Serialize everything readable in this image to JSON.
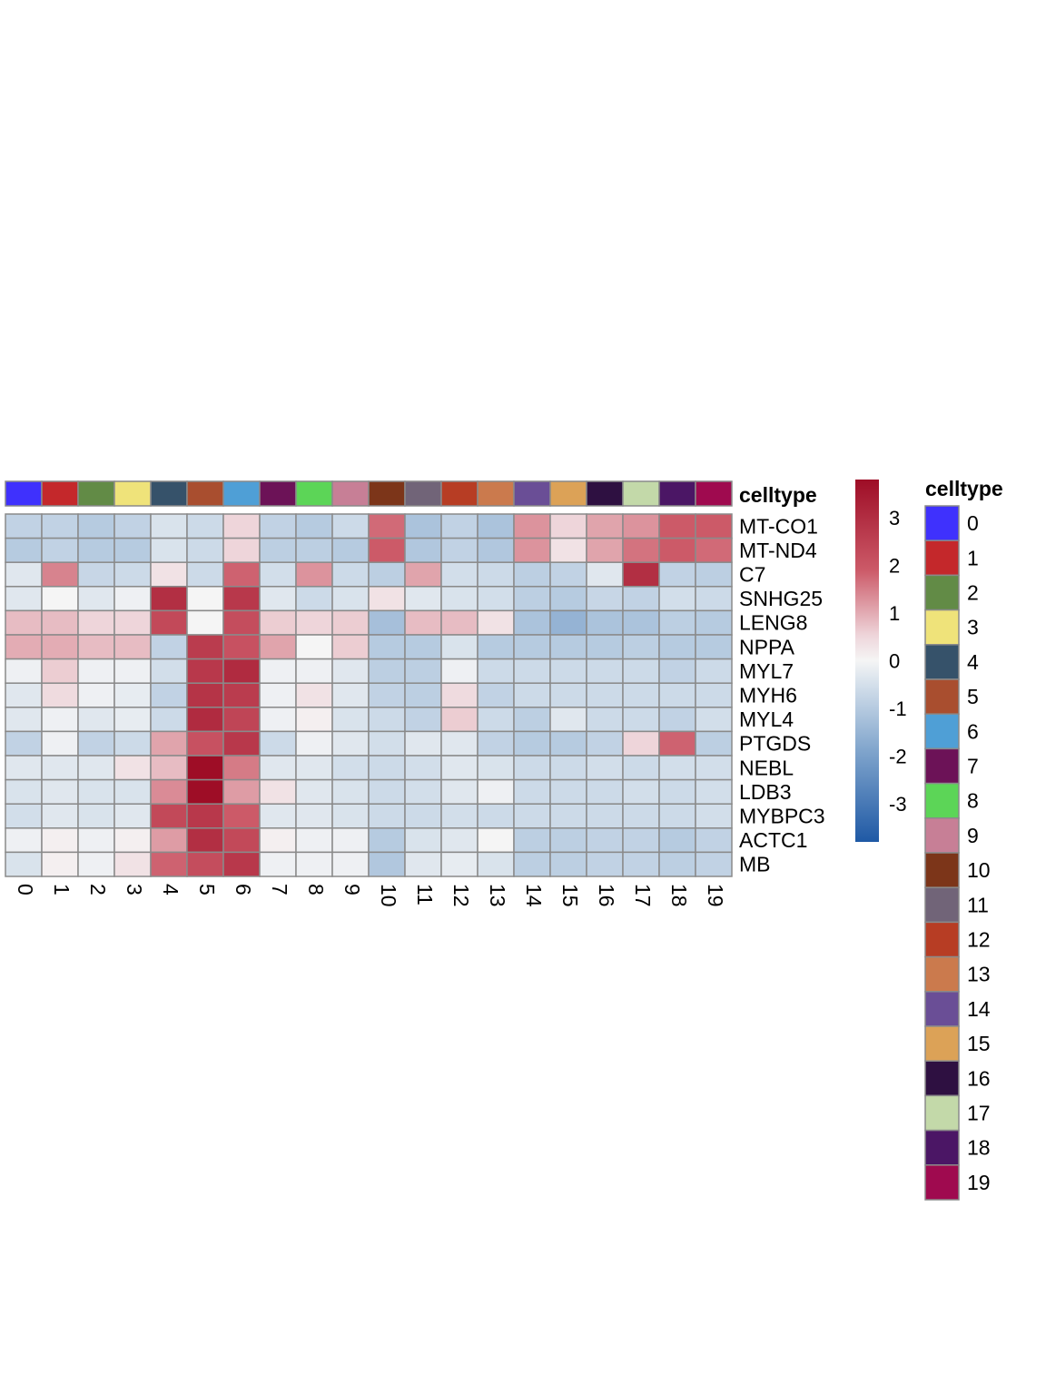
{
  "chart_data": {
    "type": "heatmap",
    "title": "",
    "annotation_title": "celltype",
    "legend_title": "celltype",
    "columns": [
      "0",
      "1",
      "2",
      "3",
      "4",
      "5",
      "6",
      "7",
      "8",
      "9",
      "10",
      "11",
      "12",
      "13",
      "14",
      "15",
      "16",
      "17",
      "18",
      "19"
    ],
    "rows": [
      "MT-CO1",
      "MT-ND4",
      "C7",
      "SNHG25",
      "LENG8",
      "NPPA",
      "MYL7",
      "MYH6",
      "MYL4",
      "PTGDS",
      "NEBL",
      "LDB3",
      "MYBPC3",
      "ACTC1",
      "MB"
    ],
    "values": [
      [
        -0.8,
        -0.8,
        -1.0,
        -0.8,
        -0.4,
        -0.6,
        0.5,
        -0.8,
        -1.0,
        -0.6,
        1.8,
        -1.2,
        -0.8,
        -1.2,
        1.3,
        0.5,
        1.1,
        1.3,
        2.0,
        2.0
      ],
      [
        -1.0,
        -0.8,
        -1.0,
        -1.0,
        -0.4,
        -0.6,
        0.5,
        -0.9,
        -0.9,
        -1.0,
        2.0,
        -1.1,
        -0.8,
        -1.1,
        1.3,
        0.3,
        1.1,
        1.7,
        2.0,
        1.8
      ],
      [
        -0.3,
        1.5,
        -0.7,
        -0.6,
        0.3,
        -0.6,
        1.9,
        -0.5,
        1.3,
        -0.6,
        -0.9,
        1.1,
        -0.5,
        -0.6,
        -0.9,
        -0.8,
        -0.3,
        3.0,
        -0.8,
        -0.9
      ],
      [
        -0.3,
        0.0,
        -0.3,
        -0.1,
        3.0,
        0.0,
        2.8,
        -0.3,
        -0.6,
        -0.4,
        0.3,
        -0.3,
        -0.4,
        -0.5,
        -0.9,
        -1.0,
        -0.7,
        -0.8,
        -0.5,
        -0.6
      ],
      [
        0.8,
        0.8,
        0.5,
        0.5,
        2.4,
        0.0,
        2.3,
        0.6,
        0.5,
        0.6,
        -1.3,
        0.8,
        0.8,
        0.3,
        -1.2,
        -1.6,
        -1.2,
        -1.2,
        -0.9,
        -1.0
      ],
      [
        1.0,
        1.0,
        0.8,
        0.8,
        -0.8,
        2.7,
        2.2,
        1.1,
        0.0,
        0.6,
        -1.0,
        -1.0,
        -0.4,
        -1.0,
        -1.0,
        -1.0,
        -1.0,
        -0.9,
        -1.0,
        -1.0
      ],
      [
        -0.1,
        0.6,
        -0.1,
        -0.1,
        -0.5,
        2.8,
        3.1,
        -0.1,
        -0.1,
        -0.3,
        -0.9,
        -0.9,
        -0.1,
        -0.6,
        -0.6,
        -0.6,
        -0.6,
        -0.6,
        -0.8,
        -0.6
      ],
      [
        -0.3,
        0.4,
        -0.1,
        -0.2,
        -0.8,
        2.9,
        2.7,
        -0.1,
        0.3,
        -0.3,
        -0.8,
        -0.9,
        0.4,
        -0.8,
        -0.6,
        -0.6,
        -0.6,
        -0.6,
        -0.6,
        -0.6
      ],
      [
        -0.3,
        -0.1,
        -0.3,
        -0.2,
        -0.6,
        3.1,
        2.5,
        -0.1,
        0.1,
        -0.4,
        -0.6,
        -0.8,
        0.6,
        -0.6,
        -0.9,
        -0.3,
        -0.6,
        -0.6,
        -0.8,
        -0.5
      ],
      [
        -0.8,
        -0.1,
        -0.8,
        -0.6,
        1.1,
        2.2,
        2.8,
        -0.6,
        -0.1,
        -0.3,
        -0.5,
        -0.3,
        -0.3,
        -0.8,
        -1.0,
        -1.0,
        -0.8,
        0.5,
        1.9,
        -0.9
      ],
      [
        -0.3,
        -0.3,
        -0.3,
        0.3,
        0.8,
        3.8,
        1.6,
        -0.3,
        -0.3,
        -0.5,
        -0.6,
        -0.5,
        -0.3,
        -0.4,
        -0.6,
        -0.6,
        -0.5,
        -0.6,
        -0.5,
        -0.5
      ],
      [
        -0.4,
        -0.3,
        -0.4,
        -0.4,
        1.4,
        3.8,
        1.2,
        0.3,
        -0.3,
        -0.4,
        -0.6,
        -0.5,
        -0.3,
        -0.1,
        -0.6,
        -0.6,
        -0.6,
        -0.5,
        -0.6,
        -0.5
      ],
      [
        -0.5,
        -0.3,
        -0.4,
        -0.3,
        2.4,
        2.8,
        2.0,
        -0.3,
        -0.3,
        -0.4,
        -0.6,
        -0.6,
        -0.5,
        -0.6,
        -0.6,
        -0.6,
        -0.6,
        -0.6,
        -0.6,
        -0.5
      ],
      [
        -0.1,
        0.1,
        -0.1,
        0.1,
        1.2,
        3.0,
        2.4,
        0.1,
        -0.1,
        -0.1,
        -1.0,
        -0.4,
        -0.3,
        0.0,
        -0.9,
        -0.9,
        -0.8,
        -0.8,
        -1.0,
        -0.8
      ],
      [
        -0.4,
        0.1,
        -0.1,
        0.3,
        1.9,
        2.3,
        2.8,
        -0.1,
        -0.1,
        -0.1,
        -1.1,
        -0.3,
        -0.2,
        -0.4,
        -0.9,
        -0.9,
        -0.8,
        -0.8,
        -0.9,
        -0.8
      ]
    ],
    "celltype_colors": [
      "#3F31FD",
      "#C4282B",
      "#628B46",
      "#EFE37A",
      "#36526A",
      "#A94E2F",
      "#4F9FD6",
      "#6C1257",
      "#5CD557",
      "#C77F96",
      "#7C3519",
      "#716478",
      "#B73D24",
      "#CB7A4D",
      "#6A4E96",
      "#DCA257",
      "#2E1041",
      "#C3D9A9",
      "#4B1665",
      "#9F0A4F"
    ],
    "color_scale": {
      "min": -3.8,
      "max": 3.8,
      "ticks": [
        3,
        2,
        1,
        0,
        -1,
        -2,
        -3
      ],
      "low_color": "#2166AC",
      "mid_color": "#F7F7F7",
      "high_color": "#A50026"
    }
  }
}
